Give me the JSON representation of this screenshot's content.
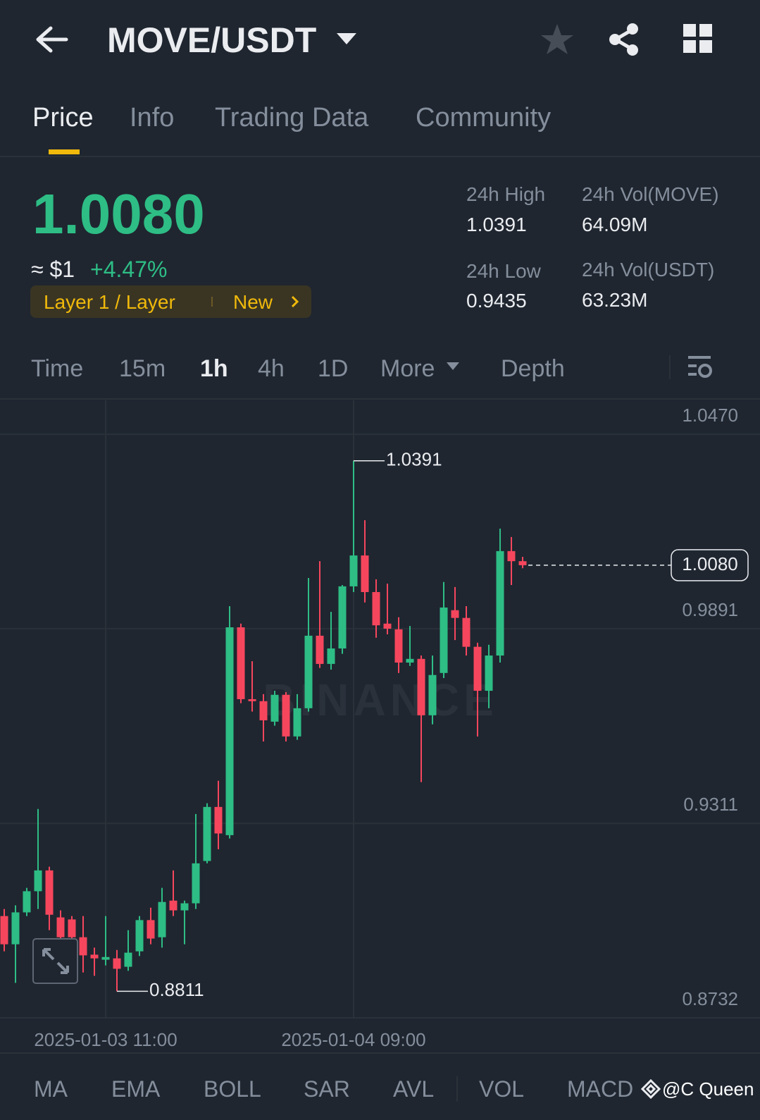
{
  "header": {
    "pair": "MOVE/USDT"
  },
  "tabs": [
    "Price",
    "Info",
    "Trading Data",
    "Community"
  ],
  "price": {
    "last": "1.0080",
    "usd": "≈ $1",
    "change": "+4.47%",
    "tag": "Layer 1 / Layer",
    "tag_new": "New",
    "stats": [
      {
        "label": "24h High",
        "value": "1.0391"
      },
      {
        "label": "24h Vol(MOVE)",
        "value": "64.09M"
      },
      {
        "label": "24h Low",
        "value": "0.9435"
      },
      {
        "label": "24h Vol(USDT)",
        "value": "63.23M"
      }
    ]
  },
  "intervals": [
    "Time",
    "15m",
    "1h",
    "4h",
    "1D",
    "More",
    "Depth"
  ],
  "chart_data": {
    "type": "candlestick",
    "categories": [
      null,
      null,
      null,
      null,
      null,
      null,
      null,
      null,
      null,
      "2025-01-03 11:00",
      null,
      null,
      null,
      null,
      null,
      null,
      null,
      null,
      null,
      null,
      null,
      null,
      null,
      null,
      null,
      null,
      null,
      null,
      null,
      null,
      null,
      "2025-01-04 09:00",
      null,
      null,
      null,
      null,
      null,
      null,
      null,
      null,
      null,
      null,
      null,
      null,
      null,
      null,
      null
    ],
    "open": [
      0.9035,
      0.8951,
      0.9046,
      0.9109,
      0.9171,
      0.9031,
      0.9025,
      0.8972,
      0.892,
      0.8905,
      0.8909,
      0.8884,
      0.893,
      0.9023,
      0.8972,
      0.9081,
      0.9052,
      0.9073,
      0.9199,
      0.936,
      0.9276,
      0.9895,
      0.9681,
      0.9675,
      0.9614,
      0.9694,
      0.957,
      0.9654,
      0.987,
      0.9786,
      0.9832,
      1.0017,
      1.0109,
      1.0,
      0.9906,
      0.9889,
      0.979,
      0.9801,
      0.9633,
      0.9759,
      0.9946,
      0.9923,
      0.9837,
      0.9706,
      0.9811,
      1.0122,
      1.0092
    ],
    "high": [
      0.9056,
      0.9067,
      0.9119,
      0.9354,
      0.9182,
      0.9052,
      0.9035,
      0.9035,
      0.8941,
      0.9035,
      0.8934,
      0.8993,
      0.9035,
      0.906,
      0.9119,
      0.9171,
      0.9081,
      0.9339,
      0.9371,
      0.9438,
      0.9958,
      0.9906,
      0.9794,
      0.9696,
      0.9706,
      0.9702,
      0.9696,
      1.0042,
      1.0092,
      0.9941,
      1.0021,
      1.0391,
      1.0214,
      1.0038,
      1.0025,
      0.9925,
      0.9899,
      0.9811,
      0.9811,
      1.003,
      1.0015,
      0.9958,
      0.9849,
      0.9843,
      1.0189,
      1.0164,
      1.0105
    ],
    "low": [
      0.893,
      0.8836,
      0.9035,
      0.9056,
      0.8993,
      0.8951,
      0.8941,
      0.8867,
      0.8857,
      0.8888,
      0.8811,
      0.8872,
      0.8916,
      0.8951,
      0.8941,
      0.9035,
      0.8951,
      0.9056,
      0.9192,
      0.9234,
      0.9266,
      0.9669,
      0.9644,
      0.9555,
      0.9602,
      0.9555,
      0.956,
      0.9644,
      0.9774,
      0.9769,
      0.9816,
      1.0,
      0.9969,
      0.9864,
      0.9874,
      0.9759,
      0.978,
      0.9434,
      0.9606,
      0.9744,
      0.9857,
      0.9811,
      0.957,
      0.9654,
      0.979,
      1.0021,
      1.0071
    ],
    "close": [
      0.8951,
      0.9046,
      0.9109,
      0.9171,
      0.9039,
      0.8972,
      0.8972,
      0.8918,
      0.8909,
      0.8913,
      0.8878,
      0.8926,
      0.9023,
      0.8968,
      0.9077,
      0.9052,
      0.9073,
      0.9192,
      0.936,
      0.9281,
      0.9895,
      0.9681,
      0.9675,
      0.9618,
      0.9694,
      0.957,
      0.9654,
      0.987,
      0.9786,
      0.9832,
      1.0017,
      1.0109,
      1.0,
      0.9901,
      0.9891,
      0.979,
      0.9801,
      0.9633,
      0.9753,
      0.9954,
      0.9923,
      0.9837,
      0.9706,
      0.9811,
      1.0122,
      1.0092,
      1.008
    ],
    "ylim": [
      0.8732,
      1.0571
    ],
    "yticks": [
      {
        "value": 1.047,
        "label": "1.0470"
      },
      0.9891,
      0.9311,
      0.8732
    ],
    "grid": true,
    "up_color": "#2ebd85",
    "down_color": "#f6465d",
    "high_label": "1.0391",
    "low_label": "0.8811",
    "last_label": "1.0080",
    "watermark": "BINANCE"
  },
  "indicators": [
    "MA",
    "EMA",
    "BOLL",
    "SAR",
    "AVL",
    "VOL",
    "MACD"
  ],
  "credit": "@C Queen"
}
